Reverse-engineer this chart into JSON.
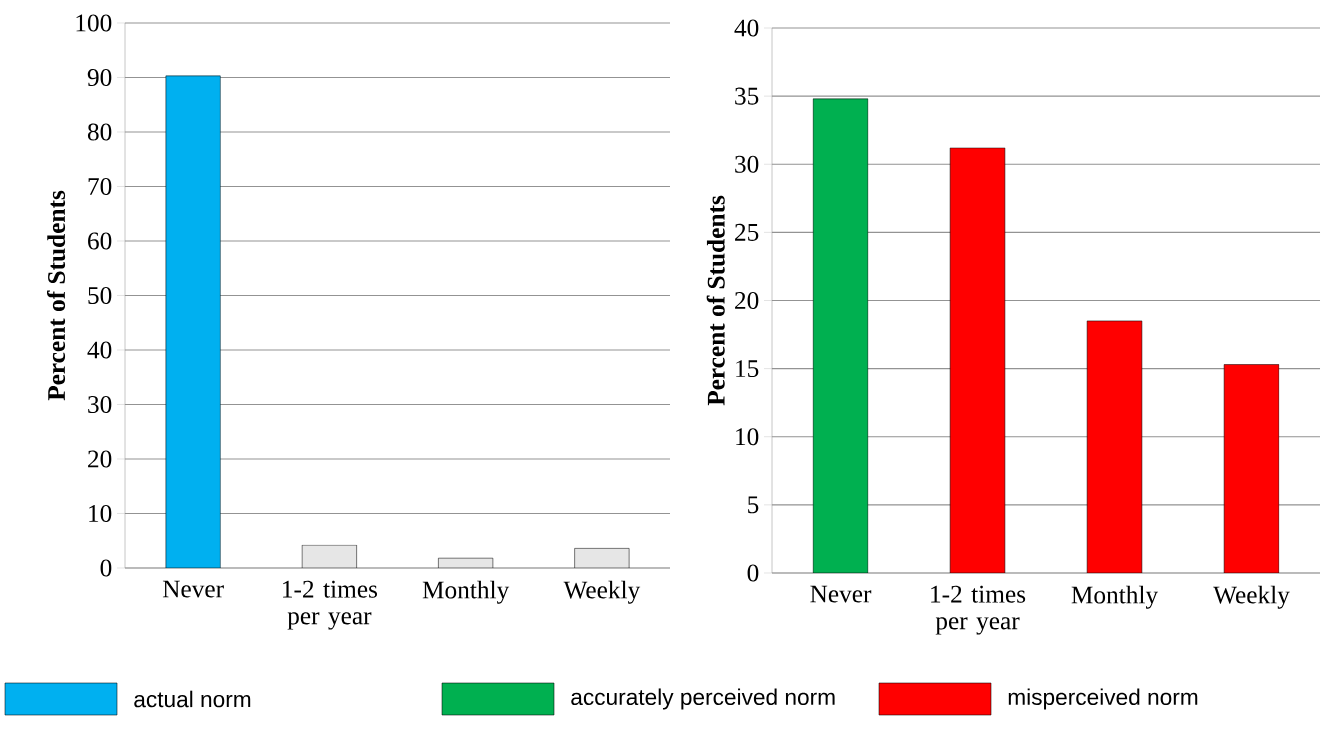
{
  "chart_data": [
    {
      "type": "bar",
      "categories": [
        "Never",
        "1-2 times per year",
        "Monthly",
        "Weekly"
      ],
      "ylabel": "Percent of Students",
      "ylim": [
        0,
        100
      ],
      "yticks": [
        0,
        10,
        20,
        30,
        40,
        50,
        60,
        70,
        80,
        90,
        100
      ],
      "grid": "y",
      "legend": "bottom",
      "series": [
        {
          "name": "actual norm",
          "color": "#00b0f0",
          "values": [
            90.3,
            null,
            null,
            null
          ]
        },
        {
          "color": "#e6e6e6",
          "values": [
            null,
            4.2,
            1.8,
            3.6
          ]
        }
      ]
    },
    {
      "type": "bar",
      "categories": [
        "Never",
        "1-2 times per year",
        "Monthly",
        "Weekly"
      ],
      "ylabel": "Percent of Students",
      "ylim": [
        0,
        40
      ],
      "yticks": [
        0,
        5,
        10,
        15,
        20,
        25,
        30,
        35,
        40
      ],
      "grid": "y",
      "legend": "bottom",
      "series": [
        {
          "name": "accurately perceived norm",
          "color": "#00b050",
          "values": [
            34.8,
            null,
            null,
            null
          ]
        },
        {
          "name": "misperceived norm",
          "color": "#ff0000",
          "values": [
            null,
            31.2,
            18.5,
            15.3
          ]
        }
      ]
    }
  ]
}
